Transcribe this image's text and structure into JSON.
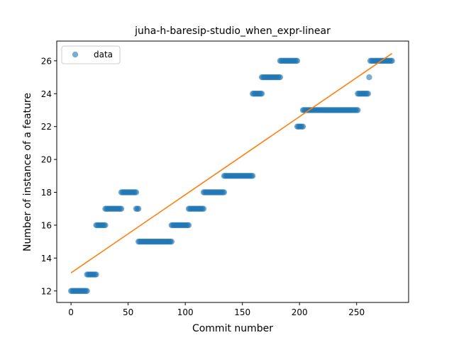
{
  "chart_data": {
    "type": "scatter",
    "title": "juha-h-baresip-studio_when_expr-linear",
    "xlabel": "Commit number",
    "ylabel": "Number of instance of a feature",
    "xlim": [
      -12.5,
      295.5
    ],
    "ylim": [
      11.3,
      27.2
    ],
    "xticks": [
      0,
      50,
      100,
      150,
      200,
      250
    ],
    "yticks": [
      12,
      14,
      16,
      18,
      20,
      22,
      24,
      26
    ],
    "grid": false,
    "legend": {
      "position": "top-left",
      "entries": [
        "data"
      ]
    },
    "colors": {
      "data": "#1f77b4",
      "fit": "#ff7f0e"
    },
    "series": [
      {
        "name": "data",
        "kind": "scatter",
        "segments": [
          {
            "x_start": 0,
            "x_end": 14,
            "y": 12
          },
          {
            "x_start": 14,
            "x_end": 22,
            "y": 13
          },
          {
            "x_start": 22,
            "x_end": 30,
            "y": 16
          },
          {
            "x_start": 30,
            "x_end": 44,
            "y": 17
          },
          {
            "x_start": 44,
            "x_end": 57,
            "y": 18
          },
          {
            "x_start": 57,
            "x_end": 59,
            "y": 17
          },
          {
            "x_start": 59,
            "x_end": 88,
            "y": 15
          },
          {
            "x_start": 88,
            "x_end": 103,
            "y": 16
          },
          {
            "x_start": 103,
            "x_end": 116,
            "y": 17
          },
          {
            "x_start": 116,
            "x_end": 134,
            "y": 18
          },
          {
            "x_start": 134,
            "x_end": 159,
            "y": 19
          },
          {
            "x_start": 159,
            "x_end": 167,
            "y": 24
          },
          {
            "x_start": 167,
            "x_end": 183,
            "y": 25
          },
          {
            "x_start": 183,
            "x_end": 198,
            "y": 26
          },
          {
            "x_start": 198,
            "x_end": 203,
            "y": 22
          },
          {
            "x_start": 203,
            "x_end": 251,
            "y": 23
          },
          {
            "x_start": 251,
            "x_end": 260,
            "y": 24
          },
          {
            "x_start": 261,
            "x_end": 261,
            "y": 25
          },
          {
            "x_start": 262,
            "x_end": 281,
            "y": 26
          }
        ]
      },
      {
        "name": "",
        "kind": "line",
        "x": [
          0,
          281
        ],
        "y": [
          13.1,
          26.45
        ]
      }
    ]
  }
}
